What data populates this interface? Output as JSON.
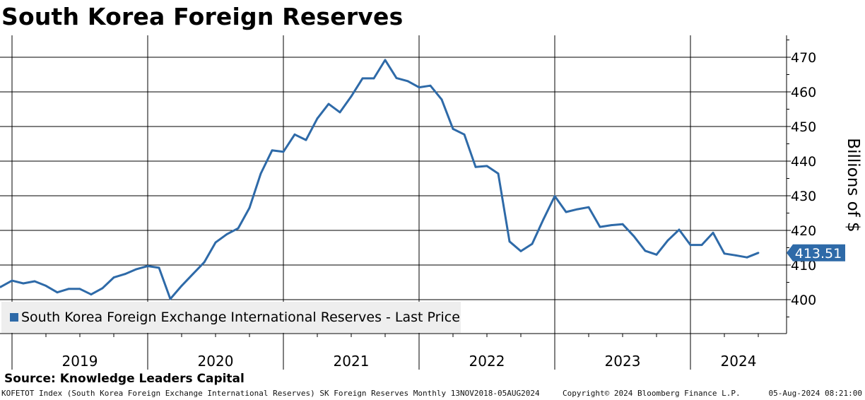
{
  "title": "South Korea Foreign Reserves",
  "source": "Source: Knowledge Leaders Capital",
  "footer": {
    "left": "KOFETOT Index (South Korea Foreign Exchange International Reserves) SK Foreign Reserves  Monthly 13NOV2018-05AUG2024",
    "copyright": "Copyright© 2024 Bloomberg Finance L.P.",
    "timestamp": "05-Aug-2024 08:21:00"
  },
  "colors": {
    "series": "#2e6aa8",
    "grid": "#000000",
    "legend_bg": "#eeeeee"
  },
  "chart_data": {
    "type": "line",
    "title": "South Korea Foreign Reserves",
    "ylabel": "Billions of $",
    "xlabel": "",
    "ylim": [
      390,
      476
    ],
    "yticks": [
      400,
      410,
      420,
      430,
      440,
      450,
      460,
      470
    ],
    "x_start": "2018-11",
    "x_end": "2024-08",
    "years": [
      "2019",
      "2020",
      "2021",
      "2022",
      "2023",
      "2024"
    ],
    "grid": true,
    "legend": {
      "label": "South Korea Foreign Exchange International Reserves - Last Price",
      "position": "bottom-left"
    },
    "last_value": "413.51",
    "series": [
      {
        "name": "South Korea Foreign Exchange International Reserves - Last Price",
        "x": [
          "2018-11",
          "2018-12",
          "2019-01",
          "2019-02",
          "2019-03",
          "2019-04",
          "2019-05",
          "2019-06",
          "2019-07",
          "2019-08",
          "2019-09",
          "2019-10",
          "2019-11",
          "2019-12",
          "2020-01",
          "2020-02",
          "2020-03",
          "2020-04",
          "2020-05",
          "2020-06",
          "2020-07",
          "2020-08",
          "2020-09",
          "2020-10",
          "2020-11",
          "2020-12",
          "2021-01",
          "2021-02",
          "2021-03",
          "2021-04",
          "2021-05",
          "2021-06",
          "2021-07",
          "2021-08",
          "2021-09",
          "2021-10",
          "2021-11",
          "2021-12",
          "2022-01",
          "2022-02",
          "2022-03",
          "2022-04",
          "2022-05",
          "2022-06",
          "2022-07",
          "2022-08",
          "2022-09",
          "2022-10",
          "2022-11",
          "2022-12",
          "2023-01",
          "2023-02",
          "2023-03",
          "2023-04",
          "2023-05",
          "2023-06",
          "2023-07",
          "2023-08",
          "2023-09",
          "2023-10",
          "2023-11",
          "2023-12",
          "2024-01",
          "2024-02",
          "2024-03",
          "2024-04",
          "2024-05",
          "2024-06",
          "2024-07"
        ],
        "values": [
          403.0,
          403.7,
          405.5,
          404.7,
          405.3,
          404.0,
          402.1,
          403.1,
          403.1,
          401.5,
          403.3,
          406.4,
          407.4,
          408.8,
          409.7,
          409.2,
          400.2,
          404.0,
          407.4,
          410.8,
          416.5,
          418.9,
          420.6,
          426.5,
          436.4,
          443.1,
          442.7,
          447.7,
          446.1,
          452.3,
          456.5,
          454.1,
          458.7,
          463.9,
          463.9,
          469.2,
          464.0,
          463.1,
          461.3,
          461.8,
          457.8,
          449.3,
          447.7,
          438.3,
          438.6,
          436.4,
          416.8,
          414.0,
          416.1,
          423.2,
          429.9,
          425.3,
          426.1,
          426.7,
          421.0,
          421.5,
          421.8,
          418.3,
          414.1,
          413.0,
          417.1,
          420.2,
          415.8,
          415.8,
          419.3,
          413.3,
          412.8,
          412.2,
          413.51
        ]
      }
    ]
  }
}
